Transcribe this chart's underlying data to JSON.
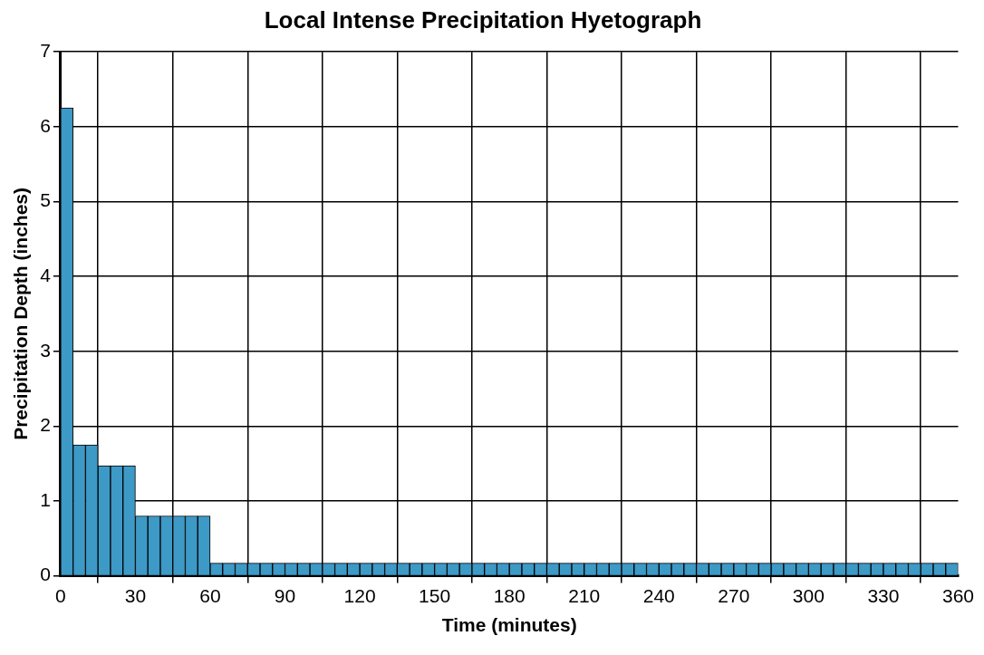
{
  "chart_data": {
    "type": "histogram",
    "title": "Local Intense Precipitation Hyetograph",
    "xlabel": "Time (minutes)",
    "ylabel": "Precipitation Depth (inches)",
    "bins": [
      0,
      5,
      10,
      15,
      20,
      25,
      30,
      35,
      40,
      45,
      50,
      55,
      60,
      65,
      70,
      75,
      80,
      85,
      90,
      95,
      100,
      105,
      110,
      115,
      120,
      125,
      130,
      135,
      140,
      145,
      150,
      155,
      160,
      165,
      170,
      175,
      180,
      185,
      190,
      195,
      200,
      205,
      210,
      215,
      220,
      225,
      230,
      235,
      240,
      245,
      250,
      255,
      260,
      265,
      270,
      275,
      280,
      285,
      290,
      295,
      300,
      305,
      310,
      315,
      320,
      325,
      330,
      335,
      340,
      345,
      350,
      355,
      360
    ],
    "values": [
      6.25,
      1.75,
      1.75,
      1.47,
      1.47,
      1.47,
      0.8,
      0.8,
      0.8,
      0.8,
      0.8,
      0.8,
      0.17,
      0.17,
      0.17,
      0.17,
      0.17,
      0.17,
      0.17,
      0.17,
      0.17,
      0.17,
      0.17,
      0.17,
      0.17,
      0.17,
      0.17,
      0.17,
      0.17,
      0.17,
      0.17,
      0.17,
      0.17,
      0.17,
      0.17,
      0.17,
      0.17,
      0.17,
      0.17,
      0.17,
      0.17,
      0.17,
      0.17,
      0.17,
      0.17,
      0.17,
      0.17,
      0.17,
      0.17,
      0.17,
      0.17,
      0.17,
      0.17,
      0.17,
      0.17,
      0.17,
      0.17,
      0.17,
      0.17,
      0.17,
      0.17,
      0.17,
      0.17,
      0.17,
      0.17,
      0.17,
      0.17,
      0.17,
      0.17,
      0.17,
      0.17,
      0.17
    ],
    "color": "#3d99c6",
    "xlim": [
      0,
      360
    ],
    "xticks": [
      0,
      30,
      60,
      90,
      120,
      150,
      180,
      210,
      240,
      270,
      300,
      330,
      360
    ],
    "ylim": [
      0,
      7
    ],
    "yticks": [
      0,
      1,
      2,
      3,
      4,
      5,
      6,
      7
    ],
    "grid": true,
    "legend": false
  }
}
